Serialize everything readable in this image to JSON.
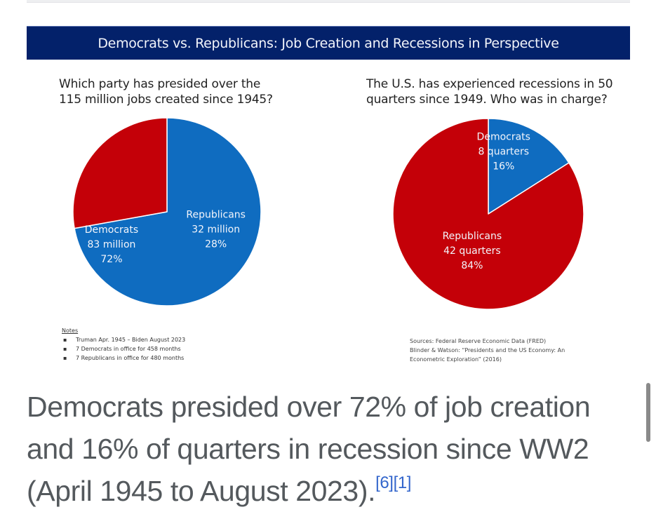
{
  "banner_title": "Democrats vs. Republicans:  Job Creation and Recessions in Perspective",
  "colors": {
    "democrats": "#0f6cc0",
    "republicans": "#c40008",
    "banner": "#03216a",
    "link": "#3366cc",
    "caption_text": "#54595d"
  },
  "chart_data": [
    {
      "type": "pie",
      "title": "Which party has presided over the 115 million jobs created since 1945?",
      "title_lines": [
        "Which party has presided over the",
        "115 million jobs created since 1945?"
      ],
      "start_angle_deg": 0,
      "direction": "clockwise",
      "slices": [
        {
          "name": "Democrats",
          "value": 83,
          "unit": "million",
          "percent": 72,
          "label_lines": [
            "Democrats",
            "83 million",
            "72%"
          ],
          "color": "#0f6cc0"
        },
        {
          "name": "Republicans",
          "value": 32,
          "unit": "million",
          "percent": 28,
          "label_lines": [
            "Republicans",
            "32 million",
            "28%"
          ],
          "color": "#c40008"
        }
      ]
    },
    {
      "type": "pie",
      "title": "The U.S. has experienced recessions in 50 quarters since 1949.  Who was in charge?",
      "title_lines": [
        "The U.S. has experienced recessions in 50",
        "quarters since 1949.  Who was in charge?"
      ],
      "start_angle_deg": 0,
      "direction": "clockwise",
      "slices": [
        {
          "name": "Democrats",
          "value": 8,
          "unit": "quarters",
          "percent": 16,
          "label_lines": [
            "Democrats",
            "8 quarters",
            "16%"
          ],
          "color": "#0f6cc0"
        },
        {
          "name": "Republicans",
          "value": 42,
          "unit": "quarters",
          "percent": 84,
          "label_lines": [
            "Republicans",
            "42 quarters",
            "84%"
          ],
          "color": "#c40008"
        }
      ]
    }
  ],
  "notes": {
    "title": "Notes",
    "items": [
      "Truman Apr. 1945 – Biden August 2023",
      "7 Democrats in office for 458 months",
      "7 Republicans in office for 480 months"
    ]
  },
  "sources": {
    "lines": [
      "Sources:  Federal Reserve Economic Data (FRED)",
      "Blinder & Watson: “Presidents and the US Economy: An",
      "Econometric Exploration” (2016)"
    ]
  },
  "caption": {
    "text": "Democrats presided over 72% of job creation and 16% of quarters in recession since WW2 (April 1945 to August 2023).",
    "refs": [
      "[6]",
      "[1]"
    ]
  }
}
